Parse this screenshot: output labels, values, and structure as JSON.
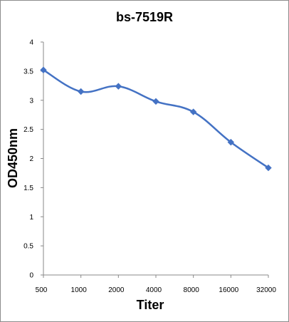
{
  "chart_data": {
    "type": "line",
    "title": "bs-7519R",
    "xlabel": "Titer",
    "ylabel": "OD450nm",
    "categories": [
      "500",
      "1000",
      "2000",
      "4000",
      "8000",
      "16000",
      "32000"
    ],
    "series": [
      {
        "values": [
          3.52,
          3.15,
          3.24,
          2.98,
          2.8,
          2.28,
          1.84
        ]
      }
    ],
    "ylim": [
      0,
      4
    ],
    "yticks": [
      "0",
      "0.5",
      "1",
      "1.5",
      "2",
      "2.5",
      "3",
      "3.5",
      "4"
    ],
    "grid": false,
    "legend": "none",
    "line_color": "#4472C4",
    "marker": "diamond"
  }
}
